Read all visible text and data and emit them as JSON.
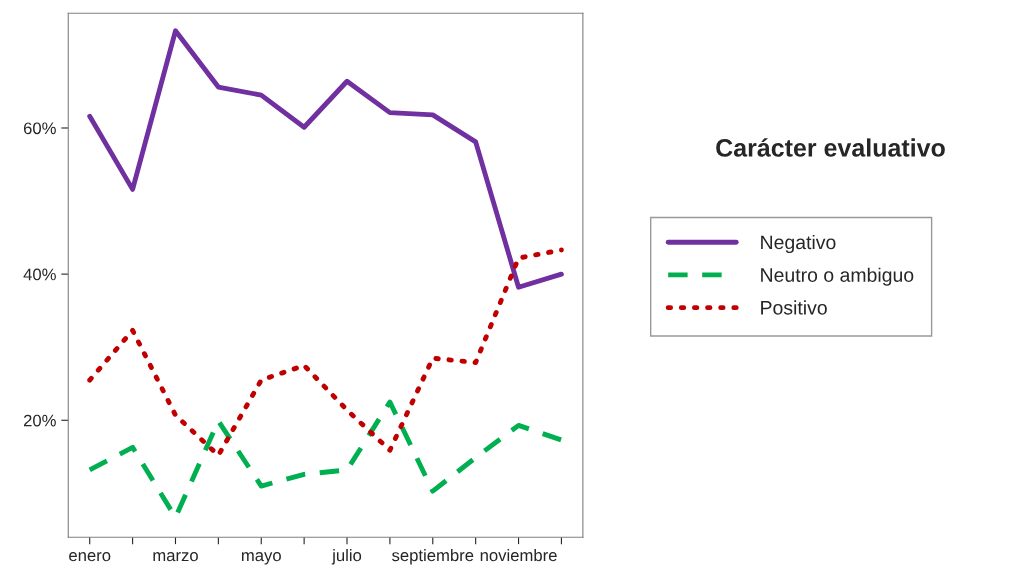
{
  "chart_data": {
    "type": "line",
    "categories": [
      "enero",
      null,
      "marzo",
      null,
      "mayo",
      null,
      "julio",
      null,
      "septiembre",
      null,
      "noviembre",
      null
    ],
    "series": [
      {
        "name": "Negativo",
        "color": "#7030a0",
        "line_style": "solid",
        "values": [
          61.6,
          51.6,
          73.3,
          65.6,
          64.5,
          60.1,
          66.4,
          62.1,
          61.8,
          58.1,
          38.2,
          40.0
        ]
      },
      {
        "name": "Neutro o ambiguo",
        "color": "#00b050",
        "line_style": "dashed",
        "values": [
          13.2,
          16.3,
          6.7,
          19.9,
          11.0,
          12.6,
          13.2,
          22.5,
          10.3,
          14.9,
          19.3,
          17.3
        ]
      },
      {
        "name": "Positivo",
        "color": "#c00000",
        "line_style": "dotted",
        "values": [
          25.5,
          32.3,
          20.7,
          15.2,
          25.5,
          27.5,
          21.4,
          15.9,
          28.5,
          27.9,
          42.2,
          43.3
        ]
      }
    ],
    "ylim": [
      4,
      75.7
    ],
    "yticks": [
      {
        "value": 20,
        "label": "20%"
      },
      {
        "value": 40,
        "label": "40%"
      },
      {
        "value": 60,
        "label": "60%"
      }
    ],
    "legend_title": "Carácter evaluativo",
    "legend": "right",
    "grid": false,
    "marker": "none"
  }
}
